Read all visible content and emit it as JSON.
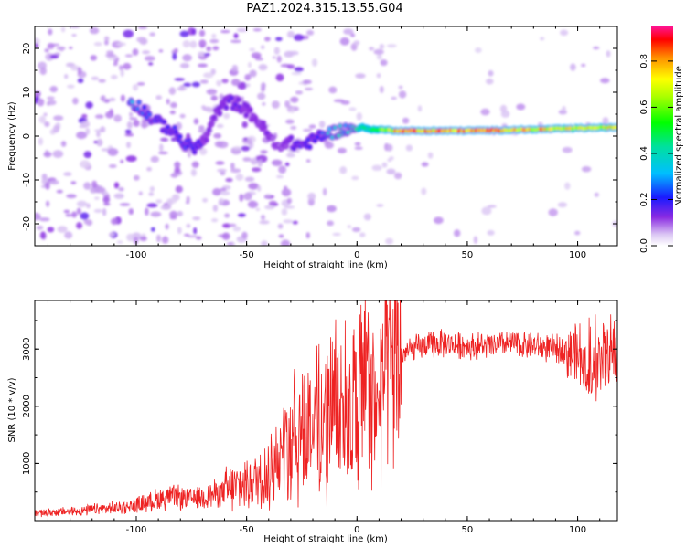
{
  "title": "PAZ1.2024.315.13.55.G04",
  "chart_data": [
    {
      "type": "heatmap",
      "xlabel": "Height of straight line (km)",
      "ylabel": "Frequency (Hz)",
      "xlim": [
        -146,
        118
      ],
      "ylim": [
        -25,
        25
      ],
      "xticks": [
        -100,
        -50,
        0,
        50,
        100
      ],
      "xtick_labels": [
        "-100",
        "-50",
        "0",
        "50",
        "100"
      ],
      "yticks": [
        -20,
        -10,
        0,
        10,
        20
      ],
      "ytick_labels": [
        "-20",
        "-10",
        "0",
        "10",
        "20"
      ],
      "colorbar": {
        "label": "Normalized spectral amplitude",
        "range": [
          0,
          0.95
        ],
        "ticks": [
          0,
          0.2,
          0.4,
          0.6,
          0.8
        ],
        "tick_labels": [
          "0.0",
          "0.2",
          "0.4",
          "0.6",
          "0.8"
        ],
        "colormap": "rainbow-white-violet-blue-cyan-green-yellow-red-magenta"
      },
      "ridge": {
        "x": [
          -103,
          -98,
          -93,
          -88,
          -83,
          -78,
          -73,
          -69,
          -63,
          -58,
          -53,
          -48,
          -44,
          -40,
          -36,
          -32,
          -28,
          -24,
          -20,
          -17,
          -14,
          -10,
          -6,
          -2,
          2,
          6,
          10,
          20,
          40,
          60,
          80,
          100,
          118
        ],
        "frequency": [
          8,
          6.5,
          4,
          2.5,
          1,
          -2,
          -2.5,
          -1,
          6,
          8,
          7,
          5,
          3,
          0,
          -3,
          -1,
          -2,
          -2,
          -1,
          0,
          0.5,
          1,
          1.5,
          1.5,
          2,
          1.5,
          1.5,
          1.2,
          1.2,
          1.3,
          1.5,
          1.8,
          2
        ],
        "amplitude": [
          0.3,
          0.25,
          0.22,
          0.2,
          0.2,
          0.25,
          0.2,
          0.12,
          0.12,
          0.15,
          0.14,
          0.12,
          0.12,
          0.12,
          0.1,
          0.12,
          0.2,
          0.2,
          0.2,
          0.2,
          0.3,
          0.35,
          0.35,
          0.35,
          0.45,
          0.5,
          0.55,
          0.8,
          0.82,
          0.8,
          0.75,
          0.7,
          0.7
        ]
      }
    },
    {
      "type": "line",
      "xlabel": "Height of straight line (km)",
      "ylabel": "SNR (10 * v/v)",
      "xlim": [
        -146,
        118
      ],
      "ylim": [
        0,
        3850
      ],
      "xticks": [
        -100,
        -50,
        0,
        50,
        100
      ],
      "xtick_labels": [
        "-100",
        "-50",
        "0",
        "50",
        "100"
      ],
      "yticks": [
        1000,
        2000,
        3000
      ],
      "ytick_labels": [
        "1000",
        "2000",
        "3000"
      ],
      "series": [
        {
          "color": "#ee2222",
          "x": [
            -146,
            -140,
            -130,
            -120,
            -110,
            -100,
            -95,
            -90,
            -85,
            -80,
            -75,
            -70,
            -65,
            -60,
            -55,
            -50,
            -45,
            -40,
            -35,
            -32,
            -28,
            -25,
            -22,
            -18,
            -15,
            -12,
            -8,
            -5,
            -2,
            0,
            2,
            4,
            6,
            8,
            9,
            10,
            12,
            15,
            20,
            25,
            30,
            40,
            50,
            60,
            70,
            80,
            90,
            95,
            100,
            102,
            104,
            106,
            108,
            110,
            112,
            118
          ],
          "y": [
            130,
            140,
            160,
            190,
            220,
            270,
            320,
            380,
            420,
            400,
            380,
            420,
            460,
            500,
            580,
            650,
            720,
            850,
            1050,
            1300,
            1500,
            1600,
            1650,
            1700,
            1800,
            1950,
            2050,
            2100,
            2000,
            1850,
            2200,
            2300,
            2300,
            2000,
            1500,
            2300,
            2500,
            2700,
            2900,
            3000,
            3050,
            3100,
            3050,
            3050,
            3100,
            3050,
            3000,
            3000,
            2900,
            2700,
            2600,
            2500,
            2700,
            2850,
            2900,
            2900
          ]
        }
      ]
    }
  ]
}
